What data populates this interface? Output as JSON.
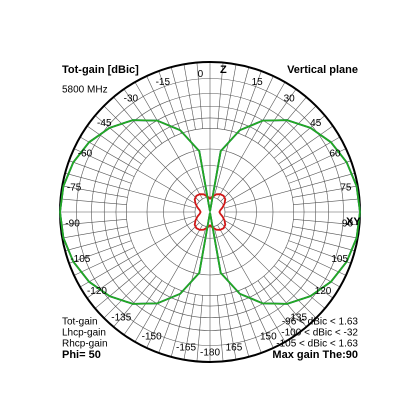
{
  "chart_data": {
    "type": "polar",
    "title": "Tot-gain [dBic]",
    "subtitle": "5800 MHz",
    "plane": "Vertical plane",
    "z_axis_label": "Z",
    "xy_axis_label": "XY",
    "angle_ticks": [
      0,
      15,
      30,
      45,
      60,
      75,
      90,
      105,
      120,
      135,
      150,
      165,
      -15,
      -30,
      -45,
      -60,
      -75,
      -90,
      -105,
      -120,
      -135,
      -150,
      -165,
      -180
    ],
    "max_gain": 1.63,
    "theta": [
      -180,
      -170,
      -160,
      -150,
      -140,
      -130,
      -120,
      -110,
      -100,
      -90,
      -80,
      -70,
      -60,
      -50,
      -40,
      -30,
      -20,
      -10,
      0,
      10,
      20,
      30,
      40,
      50,
      60,
      70,
      80,
      90,
      100,
      110,
      120,
      130,
      140,
      150,
      160,
      170,
      180
    ],
    "series": [
      {
        "name": "Rhcp-gain",
        "color": "#1a1aa0",
        "range_label": "-105 < dBic < 1.63",
        "values": [
          -96,
          -13.6,
          -7.7,
          -4.4,
          -2.2,
          -0.7,
          0.4,
          1.1,
          1.5,
          1.63,
          1.5,
          1.1,
          0.4,
          -0.7,
          -2.2,
          -4.4,
          -7.7,
          -13.6,
          -96,
          -13.6,
          -7.7,
          -4.4,
          -2.2,
          -0.7,
          0.4,
          1.1,
          1.5,
          1.63,
          1.5,
          1.1,
          0.4,
          -0.7,
          -2.2,
          -4.4,
          -7.7,
          -13.6,
          -96
        ]
      },
      {
        "name": "Lhcp-gain",
        "color": "#d01818",
        "range_label": "-100 < dBic < -32",
        "values": [
          -40,
          -37,
          -34,
          -32.5,
          -32,
          -33,
          -36,
          -40,
          -44,
          -46,
          -44,
          -40,
          -36,
          -33,
          -32,
          -32.5,
          -34,
          -37,
          -40,
          -37,
          -34,
          -32.5,
          -32,
          -33,
          -36,
          -40,
          -44,
          -46,
          -44,
          -40,
          -36,
          -33,
          -32,
          -32.5,
          -34,
          -37,
          -40
        ]
      },
      {
        "name": "Tot-gain",
        "color": "#22aa22",
        "range_label": "-96 < dBic < 1.63",
        "values": [
          -96,
          -13.6,
          -7.7,
          -4.4,
          -2.2,
          -0.7,
          0.4,
          1.1,
          1.5,
          1.63,
          1.5,
          1.1,
          0.4,
          -0.7,
          -2.2,
          -4.4,
          -7.7,
          -13.6,
          -96,
          -13.6,
          -7.7,
          -4.4,
          -2.2,
          -0.7,
          0.4,
          1.1,
          1.5,
          1.63,
          1.5,
          1.1,
          0.4,
          -0.7,
          -2.2,
          -4.4,
          -7.7,
          -13.6,
          -96
        ]
      }
    ],
    "legend_order": [
      2,
      1,
      0
    ],
    "phi_label": "Phi= 50",
    "max_gain_label": "Max gain The:90"
  }
}
